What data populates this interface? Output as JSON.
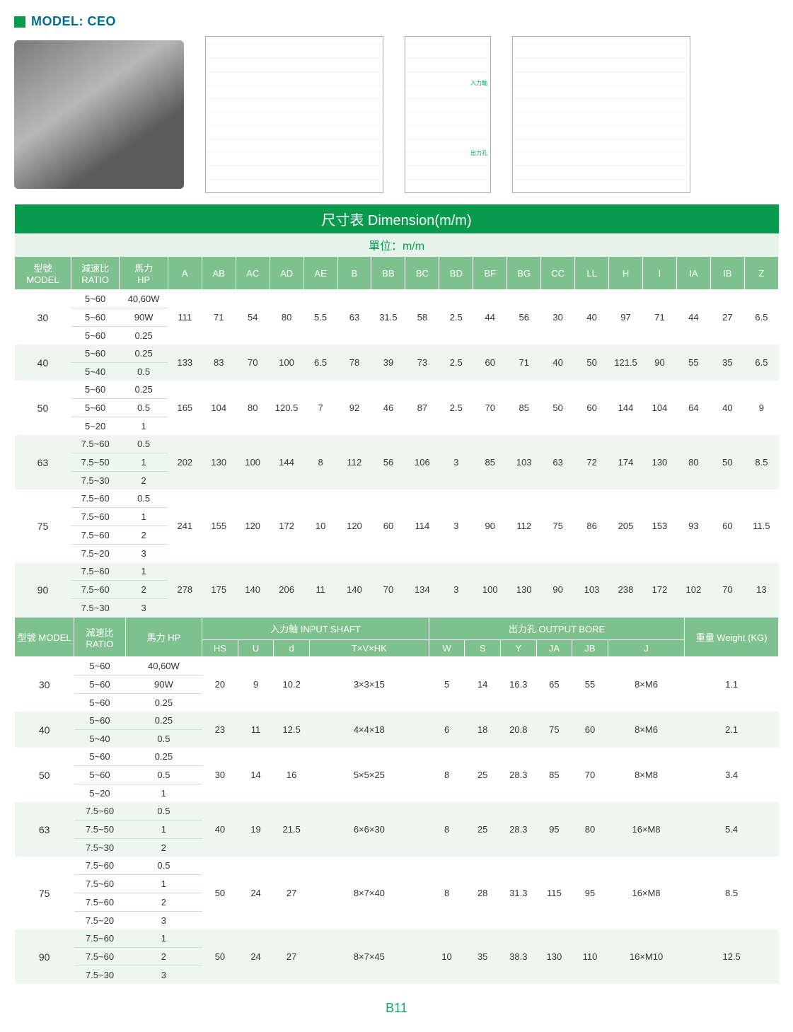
{
  "header": {
    "modelLabel": "MODEL:",
    "modelValue": "CEO"
  },
  "table1": {
    "title": "尺寸表 Dimension(m/m)",
    "unit": "單位：m/m",
    "headers": [
      "型號 MODEL",
      "減速比 RATIO",
      "馬力 HP",
      "A",
      "AB",
      "AC",
      "AD",
      "AE",
      "B",
      "BB",
      "BC",
      "BD",
      "BF",
      "BG",
      "CC",
      "LL",
      "H",
      "I",
      "IA",
      "IB",
      "Z"
    ],
    "rows": [
      {
        "model": "30",
        "shade": "white",
        "sub": [
          [
            "5~60",
            "40,60W"
          ],
          [
            "5~60",
            "90W"
          ],
          [
            "5~60",
            "0.25"
          ]
        ],
        "dims": [
          "111",
          "71",
          "54",
          "80",
          "5.5",
          "63",
          "31.5",
          "58",
          "2.5",
          "44",
          "56",
          "30",
          "40",
          "97",
          "71",
          "44",
          "27",
          "6.5"
        ]
      },
      {
        "model": "40",
        "shade": "green",
        "sub": [
          [
            "5~60",
            "0.25"
          ],
          [
            "5~40",
            "0.5"
          ]
        ],
        "dims": [
          "133",
          "83",
          "70",
          "100",
          "6.5",
          "78",
          "39",
          "73",
          "2.5",
          "60",
          "71",
          "40",
          "50",
          "121.5",
          "90",
          "55",
          "35",
          "6.5"
        ]
      },
      {
        "model": "50",
        "shade": "white",
        "sub": [
          [
            "5~60",
            "0.25"
          ],
          [
            "5~60",
            "0.5"
          ],
          [
            "5~20",
            "1"
          ]
        ],
        "dims": [
          "165",
          "104",
          "80",
          "120.5",
          "7",
          "92",
          "46",
          "87",
          "2.5",
          "70",
          "85",
          "50",
          "60",
          "144",
          "104",
          "64",
          "40",
          "9"
        ]
      },
      {
        "model": "63",
        "shade": "green",
        "sub": [
          [
            "7.5~60",
            "0.5"
          ],
          [
            "7.5~50",
            "1"
          ],
          [
            "7.5~30",
            "2"
          ]
        ],
        "dims": [
          "202",
          "130",
          "100",
          "144",
          "8",
          "112",
          "56",
          "106",
          "3",
          "85",
          "103",
          "63",
          "72",
          "174",
          "130",
          "80",
          "50",
          "8.5"
        ]
      },
      {
        "model": "75",
        "shade": "white",
        "sub": [
          [
            "7.5~60",
            "0.5"
          ],
          [
            "7.5~60",
            "1"
          ],
          [
            "7.5~60",
            "2"
          ],
          [
            "7.5~20",
            "3"
          ]
        ],
        "dims": [
          "241",
          "155",
          "120",
          "172",
          "10",
          "120",
          "60",
          "114",
          "3",
          "90",
          "112",
          "75",
          "86",
          "205",
          "153",
          "93",
          "60",
          "11.5"
        ]
      },
      {
        "model": "90",
        "shade": "green",
        "sub": [
          [
            "7.5~60",
            "1"
          ],
          [
            "7.5~60",
            "2"
          ],
          [
            "7.5~30",
            "3"
          ]
        ],
        "dims": [
          "278",
          "175",
          "140",
          "206",
          "11",
          "140",
          "70",
          "134",
          "3",
          "100",
          "130",
          "90",
          "103",
          "238",
          "172",
          "102",
          "70",
          "13"
        ]
      }
    ]
  },
  "table2": {
    "headersTop": {
      "model": "型號 MODEL",
      "ratio": "減速比 RATIO",
      "hp": "馬力 HP",
      "inputShaft": "入力軸 INPUT SHAFT",
      "outputBore": "出力孔 OUTPUT BORE",
      "weight": "重量 Weight (KG)"
    },
    "headersSub": [
      "HS",
      "U",
      "d",
      "T×V×HK",
      "W",
      "S",
      "Y",
      "JA",
      "JB",
      "J"
    ],
    "rows": [
      {
        "model": "30",
        "shade": "white",
        "sub": [
          [
            "5~60",
            "40,60W"
          ],
          [
            "5~60",
            "90W"
          ],
          [
            "5~60",
            "0.25"
          ]
        ],
        "vals": [
          "20",
          "9",
          "10.2",
          "3×3×15",
          "5",
          "14",
          "16.3",
          "65",
          "55",
          "8×M6",
          "1.1"
        ]
      },
      {
        "model": "40",
        "shade": "green",
        "sub": [
          [
            "5~60",
            "0.25"
          ],
          [
            "5~40",
            "0.5"
          ]
        ],
        "vals": [
          "23",
          "11",
          "12.5",
          "4×4×18",
          "6",
          "18",
          "20.8",
          "75",
          "60",
          "8×M6",
          "2.1"
        ]
      },
      {
        "model": "50",
        "shade": "white",
        "sub": [
          [
            "5~60",
            "0.25"
          ],
          [
            "5~60",
            "0.5"
          ],
          [
            "5~20",
            "1"
          ]
        ],
        "vals": [
          "30",
          "14",
          "16",
          "5×5×25",
          "8",
          "25",
          "28.3",
          "85",
          "70",
          "8×M8",
          "3.4"
        ]
      },
      {
        "model": "63",
        "shade": "green",
        "sub": [
          [
            "7.5~60",
            "0.5"
          ],
          [
            "7.5~50",
            "1"
          ],
          [
            "7.5~30",
            "2"
          ]
        ],
        "vals": [
          "40",
          "19",
          "21.5",
          "6×6×30",
          "8",
          "25",
          "28.3",
          "95",
          "80",
          "16×M8",
          "5.4"
        ]
      },
      {
        "model": "75",
        "shade": "white",
        "sub": [
          [
            "7.5~60",
            "0.5"
          ],
          [
            "7.5~60",
            "1"
          ],
          [
            "7.5~60",
            "2"
          ],
          [
            "7.5~20",
            "3"
          ]
        ],
        "vals": [
          "50",
          "24",
          "27",
          "8×7×40",
          "8",
          "28",
          "31.3",
          "115",
          "95",
          "16×M8",
          "8.5"
        ]
      },
      {
        "model": "90",
        "shade": "green",
        "sub": [
          [
            "7.5~60",
            "1"
          ],
          [
            "7.5~60",
            "2"
          ],
          [
            "7.5~30",
            "3"
          ]
        ],
        "vals": [
          "50",
          "24",
          "27",
          "8×7×45",
          "10",
          "35",
          "38.3",
          "130",
          "110",
          "16×M10",
          "12.5"
        ]
      }
    ]
  },
  "pageNumber": "B11",
  "drawingLabels": {
    "d1": "入力軸",
    "d2": "出力孔"
  }
}
